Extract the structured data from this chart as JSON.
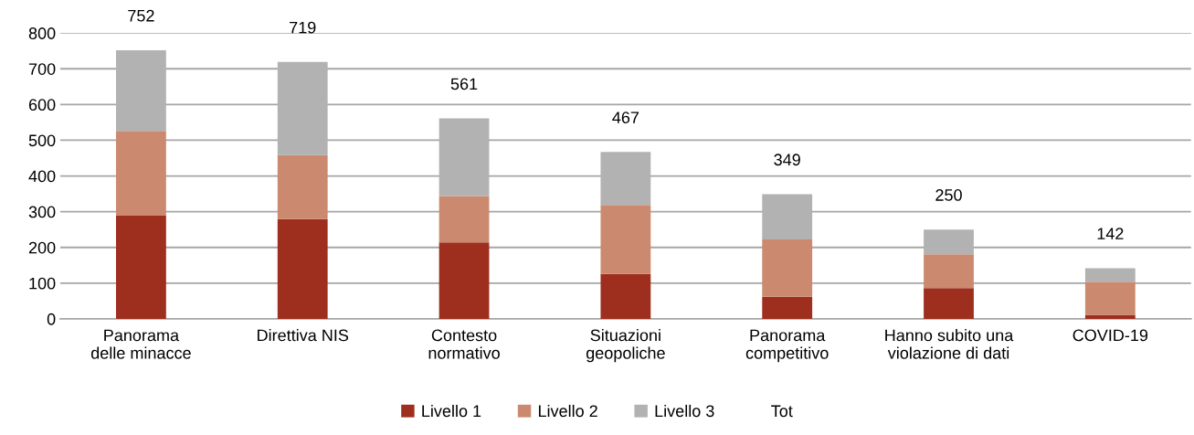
{
  "chart_data": {
    "type": "bar",
    "stacked": true,
    "categories": [
      "Panorama\ndelle minacce",
      "Direttiva NIS",
      "Contesto\nnormativo",
      "Situazioni\ngeopoliche",
      "Panorama\ncompetitivo",
      "Hanno subito una\nviolazione di dati",
      "COVID-19"
    ],
    "series": [
      {
        "name": "Livello 1",
        "color": "#9e2f1f",
        "values": [
          289,
          279,
          214,
          126,
          62,
          86,
          11
        ]
      },
      {
        "name": "Livello 2",
        "color": "#cb8a6f",
        "values": [
          237,
          179,
          130,
          193,
          160,
          95,
          93
        ]
      },
      {
        "name": "Livello 3",
        "color": "#b2b2b2",
        "values": [
          226,
          261,
          217,
          148,
          127,
          69,
          38
        ]
      }
    ],
    "totals": [
      "752",
      "719",
      "561",
      "467",
      "349",
      "250",
      "142"
    ],
    "annotations": [
      "Tot"
    ],
    "ylim": [
      0,
      800
    ],
    "yticks": [
      0,
      100,
      200,
      300,
      400,
      500,
      600,
      700,
      800
    ],
    "grid": "y",
    "legend": "bottom"
  }
}
